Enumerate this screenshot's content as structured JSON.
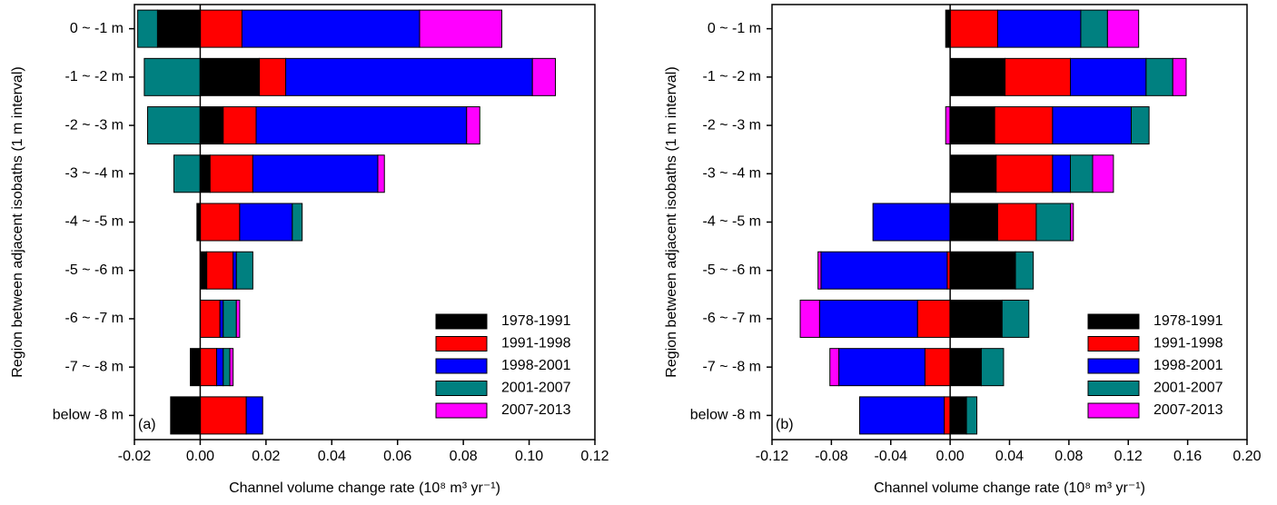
{
  "chart_data": [
    {
      "type": "bar",
      "orientation": "horizontal",
      "stacked": true,
      "panel_label": "(a)",
      "xlabel": "Channel volume change rate (10⁸ m³ yr⁻¹)",
      "ylabel": "Region between adjacent isobaths (1 m interval)",
      "categories": [
        "0 ~ -1 m",
        "-1 ~ -2 m",
        "-2 ~ -3 m",
        "-3 ~ -4 m",
        "-4 ~ -5 m",
        "-5 ~ -6 m",
        "-6 ~ -7 m",
        "-7 ~ -8 m",
        "below -8 m"
      ],
      "series": [
        {
          "name": "1978-1991",
          "color": "#000000",
          "values": [
            -0.013,
            0.018,
            0.007,
            0.003,
            -0.001,
            0.002,
            0,
            -0.003,
            -0.009
          ]
        },
        {
          "name": "1991-1998",
          "color": "#ff0000",
          "values": [
            0.0127,
            0.008,
            0.01,
            0.013,
            0.012,
            0.008,
            0.006,
            0.005,
            0.014
          ]
        },
        {
          "name": "1998-2001",
          "color": "#0000ff",
          "values": [
            0.054,
            0.075,
            0.064,
            0.038,
            0.016,
            0.001,
            0.001,
            0.002,
            0.005
          ]
        },
        {
          "name": "2001-2007",
          "color": "#008080",
          "values": [
            -0.006,
            -0.017,
            -0.016,
            -0.008,
            0.003,
            0.005,
            0.004,
            0.002,
            0
          ]
        },
        {
          "name": "2007-2013",
          "color": "#ff00ff",
          "values": [
            0.025,
            0.007,
            0.004,
            0.002,
            0,
            0,
            0.001,
            0.001,
            0
          ]
        }
      ],
      "xlim": [
        -0.02,
        0.12
      ],
      "xticks": [
        {
          "value": -0.02,
          "label": "-0.02"
        },
        {
          "value": 0,
          "label": "0.00"
        },
        {
          "value": 0.02,
          "label": "0.02"
        },
        {
          "value": 0.04,
          "label": "0.04"
        },
        {
          "value": 0.06,
          "label": "0.06"
        },
        {
          "value": 0.08,
          "label": "0.08"
        },
        {
          "value": 0.1,
          "label": "0.10"
        },
        {
          "value": 0.12,
          "label": "0.12"
        }
      ],
      "legend": "lower right"
    },
    {
      "type": "bar",
      "orientation": "horizontal",
      "stacked": true,
      "panel_label": "(b)",
      "xlabel": "Channel volume change rate (10⁸ m³ yr⁻¹)",
      "ylabel": "Region between adjacent isobaths (1 m interval)",
      "categories": [
        "0 ~ -1 m",
        "-1 ~ -2 m",
        "-2 ~ -3 m",
        "-3 ~ -4 m",
        "-4 ~ -5 m",
        "-5 ~ -6 m",
        "-6 ~ -7 m",
        "-7 ~ -8 m",
        "below -8 m"
      ],
      "series": [
        {
          "name": "1978-1991",
          "color": "#000000",
          "values": [
            -0.003,
            0.037,
            0.03,
            0.031,
            0.032,
            0.044,
            0.035,
            0.021,
            0.011
          ]
        },
        {
          "name": "1991-1998",
          "color": "#ff0000",
          "values": [
            0.032,
            0.044,
            0.039,
            0.038,
            0.026,
            -0.002,
            -0.022,
            -0.017,
            -0.004
          ]
        },
        {
          "name": "1998-2001",
          "color": "#0000ff",
          "values": [
            0.056,
            0.051,
            0.053,
            0.012,
            -0.052,
            -0.085,
            -0.066,
            -0.058,
            -0.057
          ]
        },
        {
          "name": "2001-2007",
          "color": "#008080",
          "values": [
            0.018,
            0.018,
            0.012,
            0.015,
            0.023,
            0.012,
            0.018,
            0.015,
            0.007
          ]
        },
        {
          "name": "2007-2013",
          "color": "#ff00ff",
          "values": [
            0.021,
            0.009,
            -0.003,
            0.014,
            0.002,
            -0.002,
            -0.013,
            -0.006,
            0
          ]
        }
      ],
      "xlim": [
        -0.12,
        0.2
      ],
      "xticks": [
        {
          "value": -0.12,
          "label": "-0.12"
        },
        {
          "value": -0.08,
          "label": "-0.08"
        },
        {
          "value": -0.04,
          "label": "-0.04"
        },
        {
          "value": 0,
          "label": "0.00"
        },
        {
          "value": 0.04,
          "label": "0.04"
        },
        {
          "value": 0.08,
          "label": "0.08"
        },
        {
          "value": 0.12,
          "label": "0.12"
        },
        {
          "value": 0.16,
          "label": "0.16"
        },
        {
          "value": 0.2,
          "label": "0.20"
        }
      ],
      "legend": "lower right"
    }
  ]
}
